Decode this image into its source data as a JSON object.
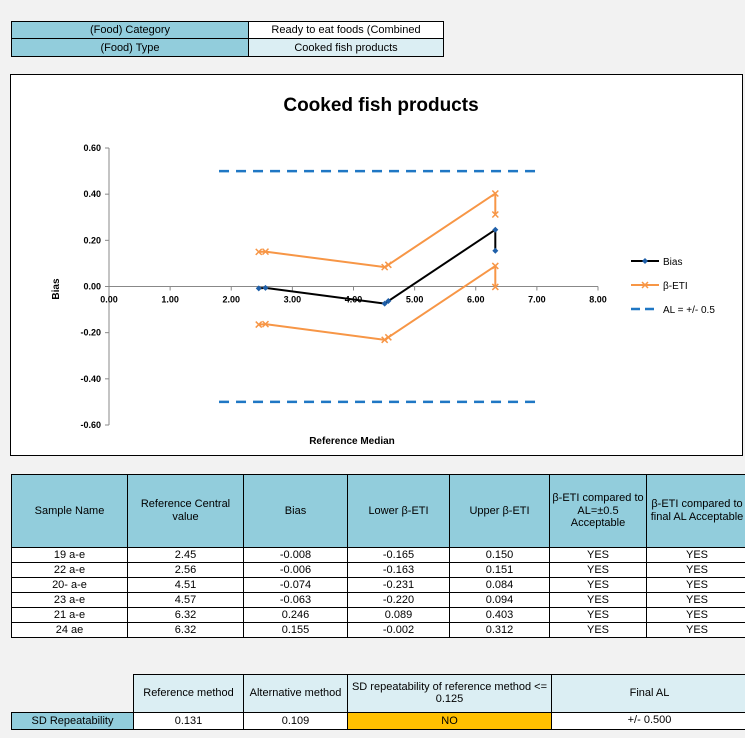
{
  "info": {
    "category_label": "(Food) Category",
    "category_value": "Ready to eat foods (Combined",
    "type_label": "(Food) Type",
    "type_value": "Cooked fish products"
  },
  "chart_data": {
    "type": "line",
    "title": "Cooked fish products",
    "xlabel": "Reference Median",
    "ylabel": "Bias",
    "xlim": [
      0,
      8
    ],
    "ylim": [
      -0.6,
      0.6
    ],
    "x_ticks": [
      "0.00",
      "1.00",
      "2.00",
      "3.00",
      "4.00",
      "5.00",
      "6.00",
      "7.00",
      "8.00"
    ],
    "y_ticks": [
      "0.60",
      "0.40",
      "0.20",
      "0.00",
      "-0.20",
      "-0.40",
      "-0.60"
    ],
    "grid": false,
    "legend_position": "right",
    "series": [
      {
        "name": "Bias",
        "color": "#000000",
        "marker": "diamond",
        "points": [
          [
            2.45,
            -0.008
          ],
          [
            2.56,
            -0.006
          ],
          [
            4.51,
            -0.074
          ],
          [
            4.57,
            -0.063
          ],
          [
            6.32,
            0.246
          ],
          [
            6.32,
            0.155
          ]
        ]
      },
      {
        "name": "β-ETI",
        "color": "#f79646",
        "marker": "x",
        "points": [
          [
            2.45,
            0.15
          ],
          [
            2.56,
            0.151
          ],
          [
            4.51,
            0.084
          ],
          [
            4.57,
            0.094
          ],
          [
            6.32,
            0.403
          ],
          [
            6.32,
            0.312
          ]
        ]
      },
      {
        "name": "",
        "color": "#f79646",
        "marker": "x",
        "points": [
          [
            2.45,
            -0.165
          ],
          [
            2.56,
            -0.163
          ],
          [
            4.51,
            -0.231
          ],
          [
            4.57,
            -0.22
          ],
          [
            6.32,
            0.089
          ],
          [
            6.32,
            -0.002
          ]
        ]
      },
      {
        "name": "AL = +/- 0.5",
        "color": "#1f77c4",
        "dashed": true,
        "points": [
          [
            1.8,
            0.5
          ],
          [
            7.0,
            0.5
          ]
        ]
      },
      {
        "name": "",
        "color": "#1f77c4",
        "dashed": true,
        "points": [
          [
            1.8,
            -0.5
          ],
          [
            7.0,
            -0.5
          ]
        ]
      }
    ]
  },
  "table": {
    "headers": [
      "Sample Name",
      "Reference Central value",
      "Bias",
      "Lower β-ETI",
      "Upper β-ETI",
      "β-ETI compared to AL=±0.5 Acceptable",
      "β-ETI compared to final AL Acceptable"
    ],
    "rows": [
      [
        "19 a-e",
        "2.45",
        "-0.008",
        "-0.165",
        "0.150",
        "YES",
        "YES"
      ],
      [
        "22 a-e",
        "2.56",
        "-0.006",
        "-0.163",
        "0.151",
        "YES",
        "YES"
      ],
      [
        "20- a-e",
        "4.51",
        "-0.074",
        "-0.231",
        "0.084",
        "YES",
        "YES"
      ],
      [
        "23 a-e",
        "4.57",
        "-0.063",
        "-0.220",
        "0.094",
        "YES",
        "YES"
      ],
      [
        "21 a-e",
        "6.32",
        "0.246",
        "0.089",
        "0.403",
        "YES",
        "YES"
      ],
      [
        "24 ae",
        "6.32",
        "0.155",
        "-0.002",
        "0.312",
        "YES",
        "YES"
      ]
    ]
  },
  "repeatability": {
    "ref_method_header": "Reference method",
    "alt_method_header": "Alternative method",
    "sd_check_header": "SD repeatability of reference method <= 0.125",
    "final_al_header": "Final AL",
    "row_label": "SD Repeatability",
    "ref_value": "0.131",
    "alt_value": "0.109",
    "sd_check_value": "NO",
    "final_al_value": "+/-  0.500"
  }
}
